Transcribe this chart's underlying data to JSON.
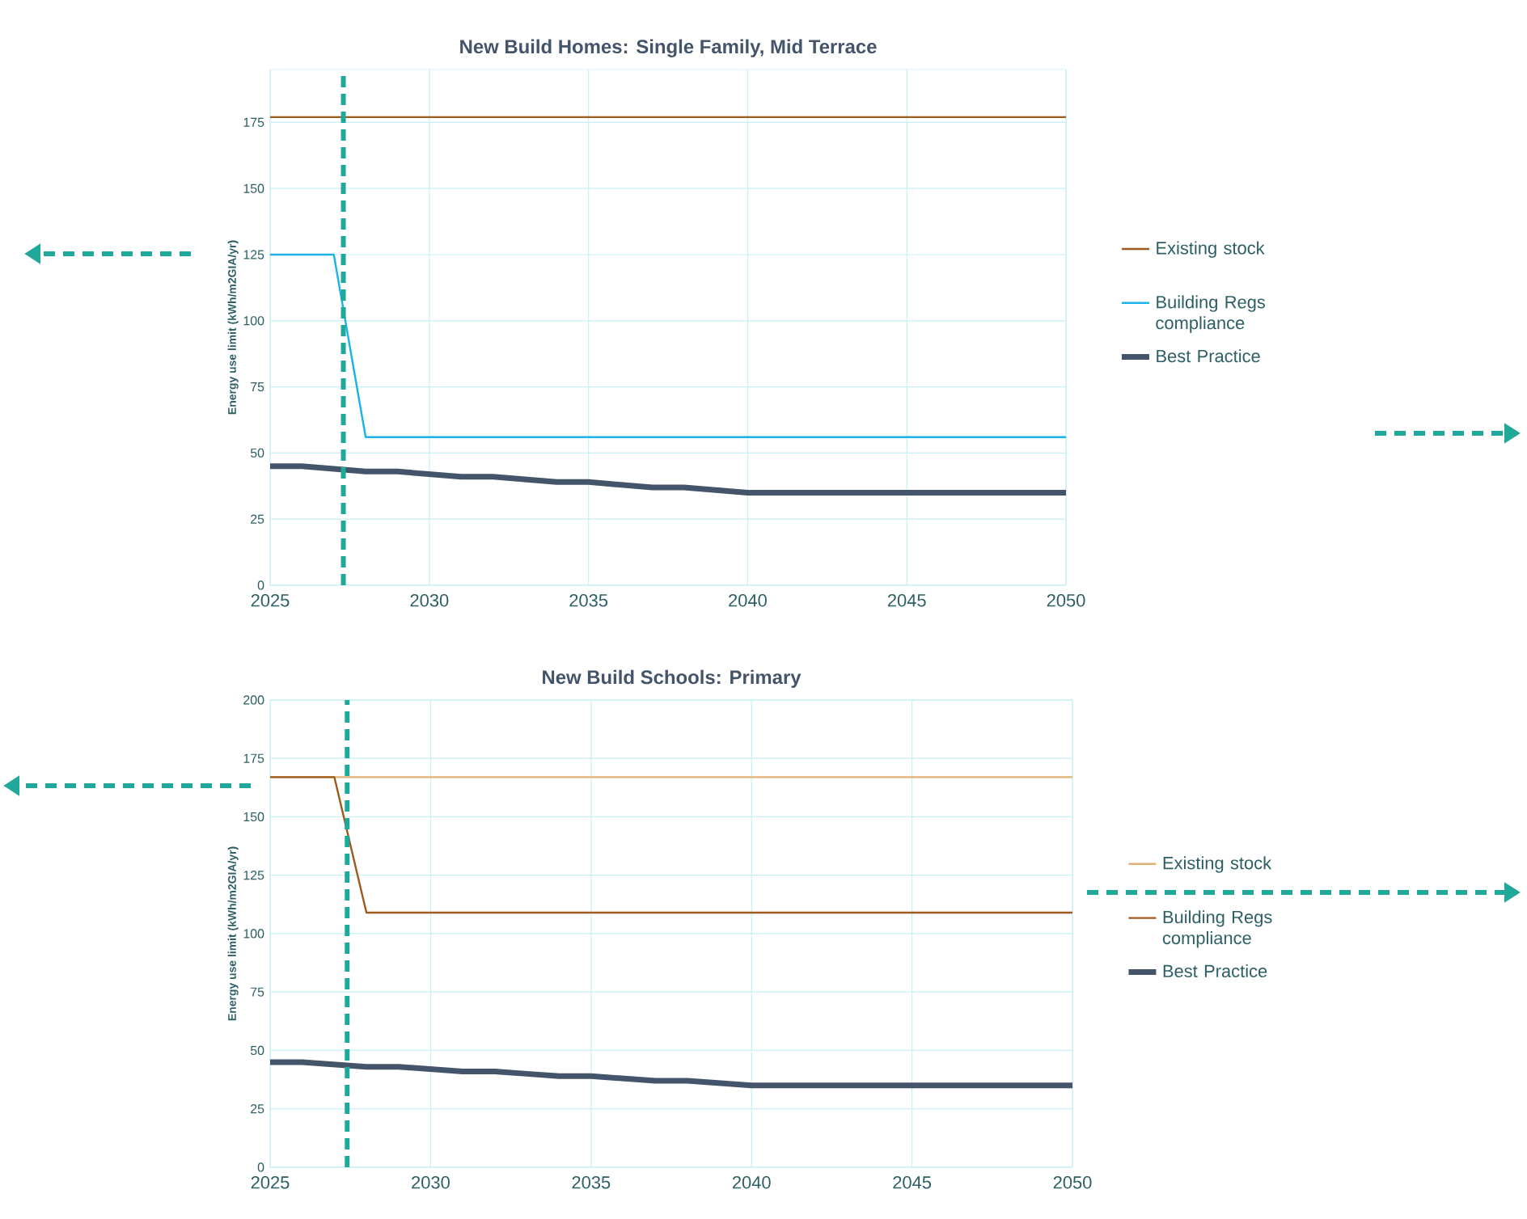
{
  "chart_data": [
    {
      "type": "line",
      "title": "New Build Homes: Single Family, Mid Terrace",
      "ylabel": "Energy use limit (kWh/m2GIA/yr)",
      "x": [
        2025,
        2026,
        2027,
        2028,
        2029,
        2030,
        2031,
        2032,
        2033,
        2034,
        2035,
        2036,
        2037,
        2038,
        2039,
        2040,
        2041,
        2042,
        2043,
        2044,
        2045,
        2046,
        2047,
        2048,
        2049,
        2050
      ],
      "series": [
        {
          "name": "Existing stock",
          "color": "#9c5a1c",
          "values": [
            177,
            177,
            177,
            177,
            177,
            177,
            177,
            177,
            177,
            177,
            177,
            177,
            177,
            177,
            177,
            177,
            177,
            177,
            177,
            177,
            177,
            177,
            177,
            177,
            177,
            177
          ]
        },
        {
          "name": "Building Regs compliance",
          "color": "#1ab2e8",
          "values": [
            125,
            125,
            125,
            56,
            56,
            56,
            56,
            56,
            56,
            56,
            56,
            56,
            56,
            56,
            56,
            56,
            56,
            56,
            56,
            56,
            56,
            56,
            56,
            56,
            56,
            56
          ]
        },
        {
          "name": "Best Practice",
          "color": "#44546a",
          "values": [
            45,
            45,
            44,
            43,
            43,
            42,
            41,
            41,
            40,
            39,
            39,
            38,
            37,
            37,
            36,
            35,
            35,
            35,
            35,
            35,
            35,
            35,
            35,
            35,
            35,
            35
          ]
        }
      ],
      "xlim": [
        2025,
        2050
      ],
      "xticks": [
        2025,
        2030,
        2035,
        2040,
        2045,
        2050
      ],
      "ylim": [
        0,
        195
      ],
      "yticks": [
        0,
        25,
        50,
        75,
        100,
        125,
        150,
        175
      ],
      "grid": true,
      "legend": "right",
      "line_style": "solid",
      "ref_lines": [
        {
          "axis": "x",
          "value": 2027.3,
          "color": "#20a89a",
          "line_style": "dashed"
        }
      ]
    },
    {
      "type": "line",
      "title": "New Build Schools: Primary",
      "ylabel": "Energy use limit (kWh/m2GIA/yr)",
      "x": [
        2025,
        2026,
        2027,
        2028,
        2029,
        2030,
        2031,
        2032,
        2033,
        2034,
        2035,
        2036,
        2037,
        2038,
        2039,
        2040,
        2041,
        2042,
        2043,
        2044,
        2045,
        2046,
        2047,
        2048,
        2049,
        2050
      ],
      "series": [
        {
          "name": "Existing stock",
          "color": "#e0b274",
          "values": [
            167,
            167,
            167,
            167,
            167,
            167,
            167,
            167,
            167,
            167,
            167,
            167,
            167,
            167,
            167,
            167,
            167,
            167,
            167,
            167,
            167,
            167,
            167,
            167,
            167,
            167
          ]
        },
        {
          "name": "Building Regs compliance",
          "color": "#9c5a1c",
          "values": [
            167,
            167,
            167,
            109,
            109,
            109,
            109,
            109,
            109,
            109,
            109,
            109,
            109,
            109,
            109,
            109,
            109,
            109,
            109,
            109,
            109,
            109,
            109,
            109,
            109,
            109
          ]
        },
        {
          "name": "Best Practice",
          "color": "#44546a",
          "values": [
            45,
            45,
            44,
            43,
            43,
            42,
            41,
            41,
            40,
            39,
            39,
            38,
            37,
            37,
            36,
            35,
            35,
            35,
            35,
            35,
            35,
            35,
            35,
            35,
            35,
            35
          ]
        }
      ],
      "xlim": [
        2025,
        2050
      ],
      "xticks": [
        2025,
        2030,
        2035,
        2040,
        2045,
        2050
      ],
      "ylim": [
        0,
        200
      ],
      "yticks": [
        0,
        25,
        50,
        75,
        100,
        125,
        150,
        175,
        200
      ],
      "grid": true,
      "legend": "right",
      "line_style": "solid",
      "ref_lines": [
        {
          "axis": "x",
          "value": 2027.4,
          "color": "#20a89a",
          "line_style": "dashed"
        }
      ]
    }
  ]
}
